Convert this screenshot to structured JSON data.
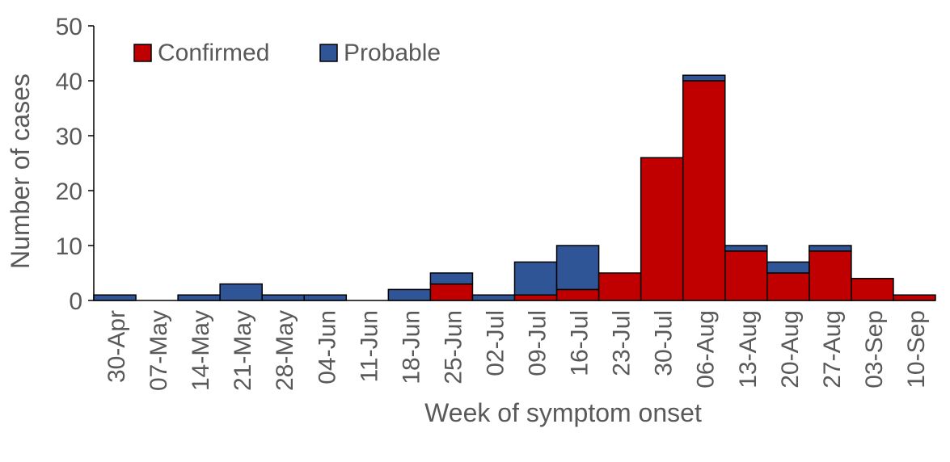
{
  "chart_data": {
    "type": "bar",
    "stacked": true,
    "title": "",
    "xlabel": "Week of symptom onset",
    "ylabel": "Number of cases",
    "ylim": [
      0,
      50
    ],
    "yticks": [
      0,
      10,
      20,
      30,
      40,
      50
    ],
    "grid": false,
    "legend_position": "top-left",
    "categories": [
      "30-Apr",
      "07-May",
      "14-May",
      "21-May",
      "28-May",
      "04-Jun",
      "11-Jun",
      "18-Jun",
      "25-Jun",
      "02-Jul",
      "09-Jul",
      "16-Jul",
      "23-Jul",
      "30-Jul",
      "06-Aug",
      "13-Aug",
      "20-Aug",
      "27-Aug",
      "03-Sep",
      "10-Sep"
    ],
    "series": [
      {
        "name": "Confirmed",
        "color": "#c00000",
        "values": [
          0,
          0,
          0,
          0,
          0,
          0,
          0,
          0,
          3,
          0,
          1,
          2,
          5,
          26,
          40,
          9,
          5,
          9,
          4,
          1
        ]
      },
      {
        "name": "Probable",
        "color": "#2f5597",
        "values": [
          1,
          0,
          1,
          3,
          1,
          1,
          0,
          2,
          2,
          1,
          6,
          8,
          0,
          0,
          1,
          1,
          2,
          1,
          0,
          0
        ]
      }
    ]
  }
}
